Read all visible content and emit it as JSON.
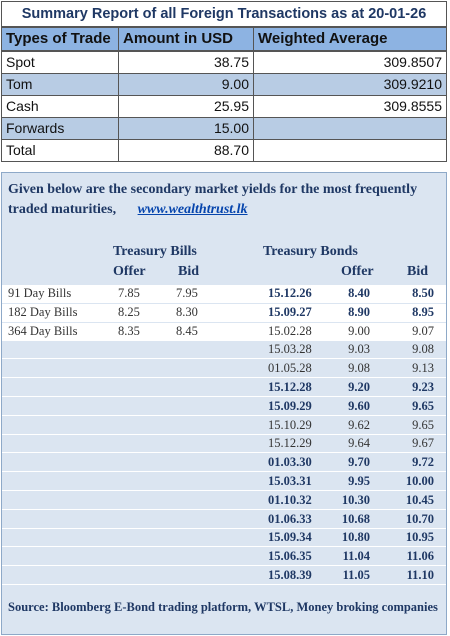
{
  "summary": {
    "title": "Summary Report of all Foreign Transactions as at 20-01-26",
    "headers": [
      "Types of Trade",
      "Amount in USD",
      "Weighted Average"
    ],
    "rows": [
      {
        "type": "Spot",
        "amount": "38.75",
        "average": "309.8507"
      },
      {
        "type": "Tom",
        "amount": "9.00",
        "average": "309.9210"
      },
      {
        "type": "Cash",
        "amount": "25.95",
        "average": "309.8555"
      },
      {
        "type": "Forwards",
        "amount": "15.00"
      },
      {
        "type": "Total",
        "amount": "88.70"
      }
    ]
  },
  "yields": {
    "intro": "Given below are the secondary market yields for the most frequently traded maturities,",
    "link": "www.wealthtrust.lk",
    "bills_heading": "Treasury Bills",
    "bonds_heading": "Treasury Bonds",
    "bills_columns": [
      "Offer",
      "Bid"
    ],
    "bonds_columns": [
      "Offer",
      "Bid"
    ],
    "bills": [
      {
        "name": "91 Day Bills",
        "offer": "7.85",
        "bid": "7.95"
      },
      {
        "name": "182 Day Bills",
        "offer": "8.25",
        "bid": "8.30"
      },
      {
        "name": "364 Day Bills",
        "offer": "8.35",
        "bid": "8.45"
      }
    ],
    "bonds": [
      {
        "maturity": "15.12.26",
        "offer": "8.40",
        "bid": "8.50",
        "bold": true
      },
      {
        "maturity": "15.09.27",
        "offer": "8.90",
        "bid": "8.95",
        "bold": true
      },
      {
        "maturity": "15.02.28",
        "offer": "9.00",
        "bid": "9.07",
        "bold": false
      },
      {
        "maturity": "15.03.28",
        "offer": "9.03",
        "bid": "9.08",
        "bold": false
      },
      {
        "maturity": "01.05.28",
        "offer": "9.08",
        "bid": "9.13",
        "bold": false
      },
      {
        "maturity": "15.12.28",
        "offer": "9.20",
        "bid": "9.23",
        "bold": true
      },
      {
        "maturity": "15.09.29",
        "offer": "9.60",
        "bid": "9.65",
        "bold": true
      },
      {
        "maturity": "15.10.29",
        "offer": "9.62",
        "bid": "9.65",
        "bold": false
      },
      {
        "maturity": "15.12.29",
        "offer": "9.64",
        "bid": "9.67",
        "bold": false
      },
      {
        "maturity": "01.03.30",
        "offer": "9.70",
        "bid": "9.72",
        "bold": true
      },
      {
        "maturity": "15.03.31",
        "offer": "9.95",
        "bid": "10.00",
        "bold": true
      },
      {
        "maturity": "01.10.32",
        "offer": "10.30",
        "bid": "10.45",
        "bold": true
      },
      {
        "maturity": "01.06.33",
        "offer": "10.68",
        "bid": "10.70",
        "bold": true
      },
      {
        "maturity": "15.09.34",
        "offer": "10.80",
        "bid": "10.95",
        "bold": true
      },
      {
        "maturity": "15.06.35",
        "offer": "11.04",
        "bid": "11.06",
        "bold": true
      },
      {
        "maturity": "15.08.39",
        "offer": "11.05",
        "bid": "11.10",
        "bold": true
      }
    ],
    "source": "Source: Bloomberg E-Bond trading platform, WTSL, Money broking companies"
  }
}
